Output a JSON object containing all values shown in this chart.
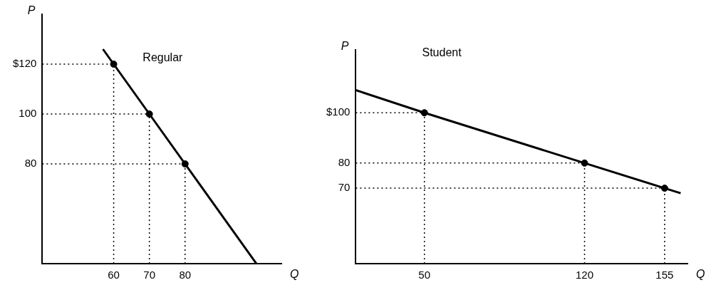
{
  "chart_data": [
    {
      "type": "line",
      "xlabel": "Q",
      "ylabel": "P",
      "annotations": [
        "Regular"
      ],
      "xlim": [
        40,
        107
      ],
      "ylim": [
        40,
        140
      ],
      "xticks": [
        60,
        70,
        80
      ],
      "yticks": [
        {
          "value": 80,
          "label": "80"
        },
        {
          "value": 100,
          "label": "100"
        },
        {
          "value": 120,
          "label": "$120"
        }
      ],
      "grid": false,
      "legend": false,
      "series": [
        {
          "type": "line",
          "color": "#000000",
          "marker": "none",
          "x": [
            57,
            60,
            70,
            80,
            100
          ],
          "values": [
            126,
            120,
            100,
            80,
            40
          ]
        },
        {
          "type": "scatter",
          "color": "#000000",
          "marker": "circle",
          "x": [
            60,
            70,
            80
          ],
          "values": [
            120,
            100,
            80
          ]
        }
      ],
      "ref_lines": [
        {
          "axis": "y",
          "value": 120,
          "line_style": "dotted"
        },
        {
          "axis": "y",
          "value": 100,
          "line_style": "dotted"
        },
        {
          "axis": "y",
          "value": 80,
          "line_style": "dotted"
        },
        {
          "axis": "x",
          "value": 60,
          "line_style": "dotted"
        },
        {
          "axis": "x",
          "value": 70,
          "line_style": "dotted"
        },
        {
          "axis": "x",
          "value": 80,
          "line_style": "dotted"
        }
      ]
    },
    {
      "type": "line",
      "xlabel": "Q",
      "ylabel": "P",
      "annotations": [
        "Student"
      ],
      "xlim": [
        20,
        165
      ],
      "ylim": [
        40,
        125
      ],
      "xticks": [
        50,
        120,
        155
      ],
      "yticks": [
        {
          "value": 70,
          "label": "70"
        },
        {
          "value": 80,
          "label": "80"
        },
        {
          "value": 100,
          "label": "$100"
        }
      ],
      "grid": false,
      "legend": false,
      "series": [
        {
          "type": "line",
          "color": "#000000",
          "marker": "none",
          "x": [
            20,
            50,
            120,
            155,
            162
          ],
          "values": [
            109,
            100,
            80,
            70,
            68
          ]
        },
        {
          "type": "scatter",
          "color": "#000000",
          "marker": "circle",
          "x": [
            50,
            120,
            155
          ],
          "values": [
            100,
            80,
            70
          ]
        }
      ],
      "ref_lines": [
        {
          "axis": "y",
          "value": 100,
          "line_style": "dotted"
        },
        {
          "axis": "y",
          "value": 80,
          "line_style": "dotted"
        },
        {
          "axis": "y",
          "value": 70,
          "line_style": "dotted"
        },
        {
          "axis": "x",
          "value": 50,
          "line_style": "dotted"
        },
        {
          "axis": "x",
          "value": 120,
          "line_style": "dotted"
        },
        {
          "axis": "x",
          "value": 155,
          "line_style": "dotted"
        }
      ]
    }
  ]
}
